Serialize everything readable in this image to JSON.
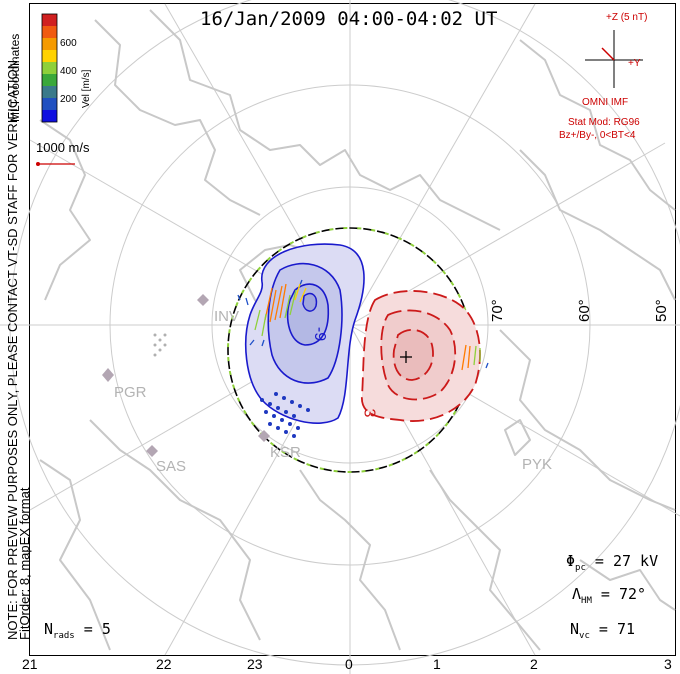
{
  "title": "16/Jan/2009 04:00-04:02 UT",
  "colorbar": {
    "label": "Vel [m/s]",
    "ticks": [
      "600",
      "400",
      "200"
    ],
    "colors": [
      "#d02020",
      "#f05a10",
      "#f59a00",
      "#ffd200",
      "#8ed03a",
      "#3aa83a",
      "#3a7a8a",
      "#2050c0",
      "#1010e0"
    ]
  },
  "coord_label": "MLT coordinates",
  "reference_vector": "1000 m/s",
  "preview_note": "NOTE: FOR PREVIEW PURPOSES ONLY, PLEASE CONTACT VT-SD STAFF FOR VERIFICATION.",
  "fit_info": "FitOrder: 8, mapEX format",
  "imf": {
    "scale": "+Z (5 nT)",
    "y_label": "+Y",
    "source": "OMNI IMF",
    "model": "Stat Mod: RG96",
    "condition": "Bz+/By-, 0<BT<4"
  },
  "latitude_labels": [
    "70°",
    "60°",
    "50°"
  ],
  "radars": [
    "PGR",
    "SAS",
    "KSR",
    "PYK",
    "INV"
  ],
  "contour_labels": [
    "-9",
    "3"
  ],
  "stats": {
    "phi_pc": "27 kV",
    "lambda_hm": "72°",
    "n_vc": "71",
    "n_rads": "5"
  },
  "stat_symbols": {
    "phi": "Φ",
    "phi_sub": "pc",
    "lambda": "Λ",
    "lambda_sub": "HM",
    "n": "N",
    "nvc_sub": "vc",
    "nrads_sub": "rads"
  },
  "mlt_ticks": [
    "21",
    "22",
    "23",
    "0",
    "1",
    "2",
    "3"
  ]
}
